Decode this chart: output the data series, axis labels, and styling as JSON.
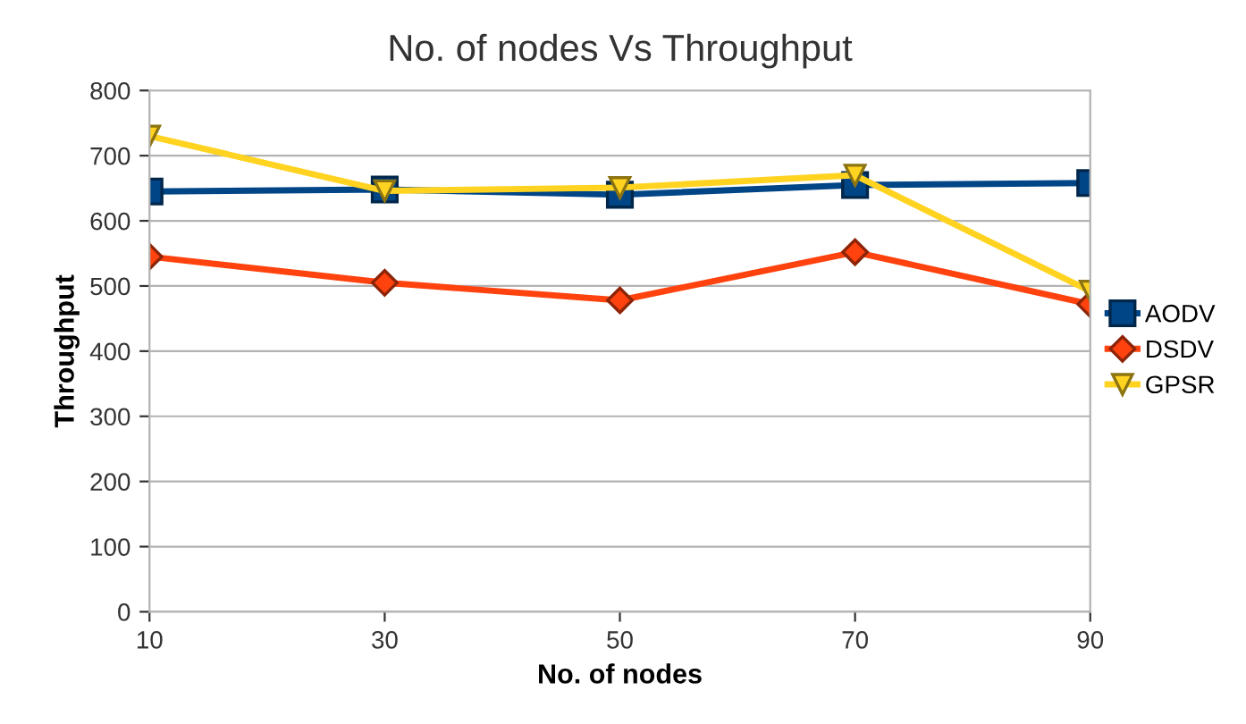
{
  "chart_data": {
    "type": "line",
    "title": "No. of nodes Vs Throughput",
    "xlabel": "No. of nodes",
    "ylabel": "Throughput",
    "categories": [
      "10",
      "30",
      "50",
      "70",
      "90"
    ],
    "series": [
      {
        "name": "AODV",
        "color": "#004586",
        "marker": "square",
        "values": [
          645,
          648,
          640,
          655,
          658
        ]
      },
      {
        "name": "DSDV",
        "color": "#ff420e",
        "marker": "diamond",
        "values": [
          545,
          505,
          478,
          552,
          472
        ]
      },
      {
        "name": "GPSR",
        "color": "#ffd320",
        "marker": "triangle_down",
        "values": [
          730,
          646,
          651,
          670,
          492
        ]
      }
    ],
    "ylim": [
      0,
      800
    ],
    "yticks": [
      0,
      100,
      200,
      300,
      400,
      500,
      600,
      700,
      800
    ],
    "grid": "y",
    "legend": "right"
  }
}
